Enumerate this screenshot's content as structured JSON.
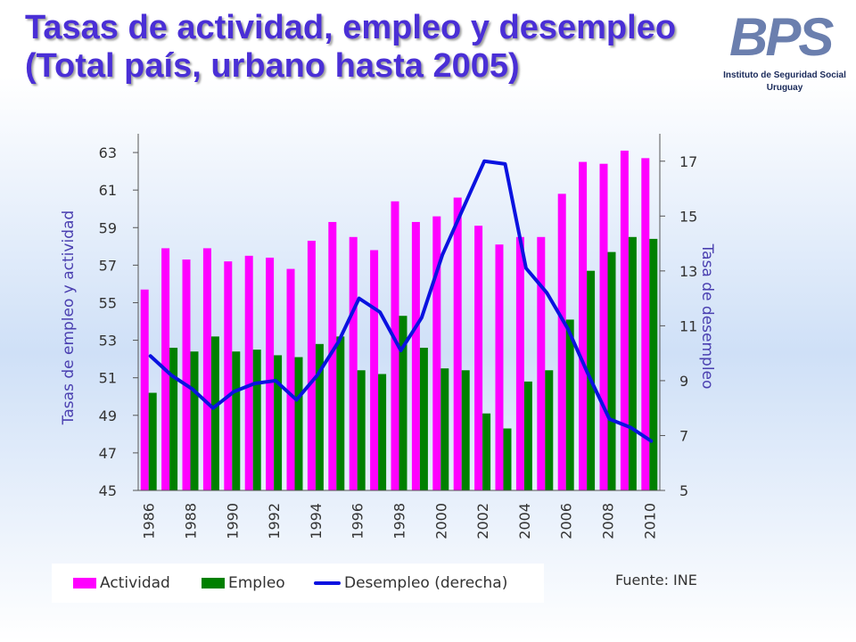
{
  "title": {
    "line1": "Tasas de actividad, empleo y desempleo",
    "line2": "(Total país, urbano hasta 2005)"
  },
  "logo": {
    "mark": "BPS",
    "caption_line1": "Instituto de Seguridad Social",
    "caption_line2": "Uruguay"
  },
  "source": "Fuente: INE",
  "colors": {
    "actividad": "#ff00ff",
    "empleo": "#008000",
    "desempleo": "#0a12e0",
    "title": "#4a2fd6",
    "axis_label": "#4a3fb0"
  },
  "chart_data": {
    "type": "bar",
    "xlabel": "",
    "ylabel": "Tasas de empleo y actividad",
    "y2label": "Tasa de desempleo",
    "ylim": [
      45,
      64
    ],
    "y2lim": [
      5,
      18
    ],
    "yticks": [
      45,
      47,
      49,
      51,
      53,
      55,
      57,
      59,
      61,
      63
    ],
    "y2ticks": [
      5,
      7,
      9,
      11,
      13,
      15,
      17
    ],
    "categories": [
      "1986",
      "1987",
      "1988",
      "1989",
      "1990",
      "1991",
      "1992",
      "1993",
      "1994",
      "1995",
      "1996",
      "1997",
      "1998",
      "1999",
      "2000",
      "2001",
      "2002",
      "2003",
      "2004",
      "2005",
      "2006",
      "2007",
      "2008",
      "2009",
      "2010"
    ],
    "xtick_labels": [
      "1986",
      "1988",
      "1990",
      "1992",
      "1994",
      "1996",
      "1998",
      "2000",
      "2002",
      "2004",
      "2006",
      "2008",
      "2010"
    ],
    "series": [
      {
        "name": "Actividad",
        "type": "bar",
        "axis": "left",
        "values": [
          55.7,
          57.9,
          57.3,
          57.9,
          57.2,
          57.5,
          57.4,
          56.8,
          58.3,
          59.3,
          58.5,
          57.8,
          60.4,
          59.3,
          59.6,
          60.6,
          59.1,
          58.1,
          58.5,
          58.5,
          60.8,
          62.5,
          62.4,
          63.1,
          62.7
        ]
      },
      {
        "name": "Empleo",
        "type": "bar",
        "axis": "left",
        "values": [
          50.2,
          52.6,
          52.4,
          53.2,
          52.4,
          52.5,
          52.2,
          52.1,
          52.8,
          53.2,
          51.4,
          51.2,
          54.3,
          52.6,
          51.5,
          51.4,
          49.1,
          48.3,
          50.8,
          51.4,
          54.1,
          56.7,
          57.7,
          58.5,
          58.4
        ]
      },
      {
        "name": "Desempleo (derecha)",
        "type": "line",
        "axis": "right",
        "values": [
          9.9,
          9.2,
          8.7,
          8.0,
          8.6,
          8.9,
          9.0,
          8.3,
          9.2,
          10.4,
          12.0,
          11.5,
          10.1,
          11.3,
          13.6,
          15.3,
          17.0,
          16.9,
          13.1,
          12.2,
          10.9,
          9.2,
          7.6,
          7.3,
          6.8
        ]
      }
    ],
    "legend_position": "bottom",
    "grid": false
  }
}
